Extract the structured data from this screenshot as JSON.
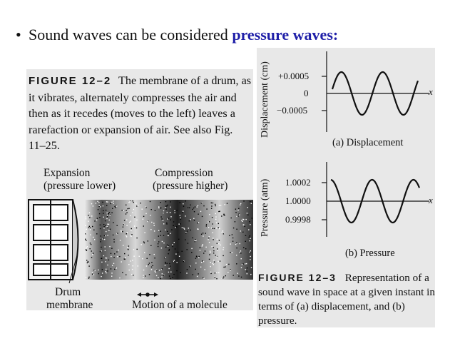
{
  "bullet": {
    "symbol": "•",
    "text": "Sound waves can be considered ",
    "highlight": "pressure waves:",
    "highlight_color": "#1f1fa8"
  },
  "figure_12_2": {
    "label": "FIGURE 12–2",
    "caption": "The membrane of a drum, as it vibrates, alternately compresses the air and then as it recedes (moves to the left) leaves a rarefaction or expansion of air. See also Fig. 11–25.",
    "expansion_line1": "Expansion",
    "expansion_line2": "(pressure lower)",
    "compression_line1": "Compression",
    "compression_line2": "(pressure higher)",
    "drum_line1": "Drum",
    "drum_line2": "membrane",
    "motion_label": "Motion of a molecule"
  },
  "figure_12_3": {
    "displacement_axis": "Displacement (cm)",
    "disp_ticks": [
      "+0.0005",
      "0",
      "−0.0005"
    ],
    "x_label": "x",
    "disp_caption": "(a) Displacement",
    "pressure_axis": "Pressure (atm)",
    "pres_ticks": [
      "1.0002",
      "1.0000",
      "0.9998"
    ],
    "pres_caption": "(b) Pressure",
    "label": "FIGURE 12–3",
    "caption": "Representation of a sound wave in space at a given instant in terms of (a) displacement, and (b) pressure."
  }
}
